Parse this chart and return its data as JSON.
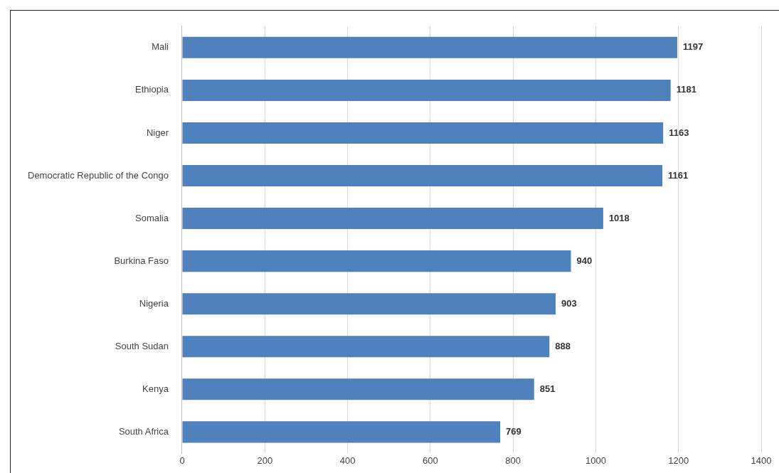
{
  "chart_data": {
    "type": "bar",
    "orientation": "horizontal",
    "categories": [
      "Mali",
      "Ethiopia",
      "Niger",
      "Democratic Republic of the Congo",
      "Somalia",
      "Burkina Faso",
      "Nigeria",
      "South Sudan",
      "Kenya",
      "South Africa"
    ],
    "values": [
      1197,
      1181,
      1163,
      1161,
      1018,
      940,
      903,
      888,
      851,
      769
    ],
    "color": "#4f81bd",
    "xlim": [
      0,
      1400
    ],
    "xticks": [
      0,
      200,
      400,
      600,
      800,
      1000,
      1200,
      1400
    ],
    "grid": "x",
    "data_labels": true,
    "legend": false
  }
}
